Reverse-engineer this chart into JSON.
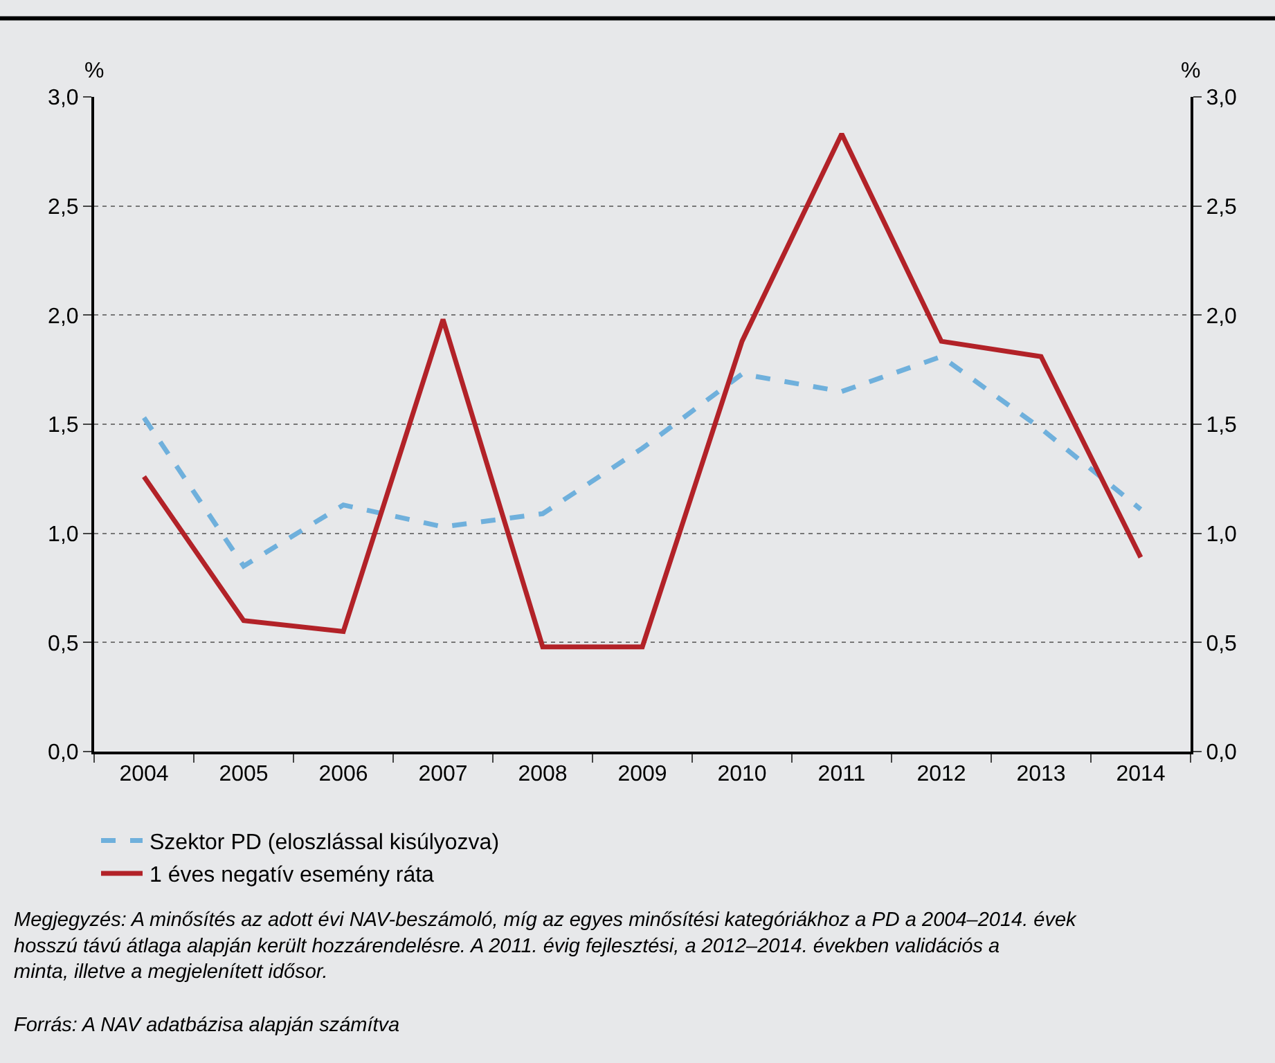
{
  "chart_data": {
    "type": "line",
    "categories": [
      "2004",
      "2005",
      "2006",
      "2007",
      "2008",
      "2009",
      "2010",
      "2011",
      "2012",
      "2013",
      "2014"
    ],
    "series": [
      {
        "name": "Szektor PD (eloszlással kisúlyozva)",
        "color": "#6fb0dc",
        "line_style": "dashed",
        "values": [
          1.53,
          0.85,
          1.13,
          1.03,
          1.09,
          1.39,
          1.73,
          1.65,
          1.81,
          1.48,
          1.11
        ]
      },
      {
        "name": "1 éves negatív esemény ráta",
        "color": "#b22228",
        "line_style": "solid",
        "values": [
          1.26,
          0.6,
          0.55,
          1.98,
          0.48,
          0.48,
          1.88,
          2.83,
          1.88,
          1.81,
          0.89
        ]
      }
    ],
    "ylabel": "%",
    "y2label": "%",
    "ylim": [
      0,
      3
    ],
    "y2lim": [
      0,
      3
    ],
    "yticks": [
      {
        "value": 0,
        "label": "0,0"
      },
      {
        "value": 0.5,
        "label": "0,5"
      },
      {
        "value": 1,
        "label": "1,0"
      },
      {
        "value": 1.5,
        "label": "1,5"
      },
      {
        "value": 2,
        "label": "2,0"
      },
      {
        "value": 2.5,
        "label": "2,5"
      },
      {
        "value": 3,
        "label": "3,0"
      }
    ],
    "y2ticks": [
      {
        "value": 0,
        "label": "0,0"
      },
      {
        "value": 0.5,
        "label": "0,5"
      },
      {
        "value": 1,
        "label": "1,0"
      },
      {
        "value": 1.5,
        "label": "1,5"
      },
      {
        "value": 2,
        "label": "2,0"
      },
      {
        "value": 2.5,
        "label": "2,5"
      },
      {
        "value": 3,
        "label": "3,0"
      }
    ],
    "grid": "y",
    "legend": "bottom left",
    "marker": "none",
    "annotations": [
      "Megjegyzés: A minősítés az adott évi NAV-beszámoló, míg az egyes minősítési kategóriákhoz a PD a 2004–2014. évek hosszú távú átlaga alapján került hozzárendelésre. A 2011. évig fejlesztési, a 2012–2014. években validációs a minta, illetve a megjelenített idősor.",
      "Forrás: A NAV adatbázisa alapján számítva"
    ]
  }
}
